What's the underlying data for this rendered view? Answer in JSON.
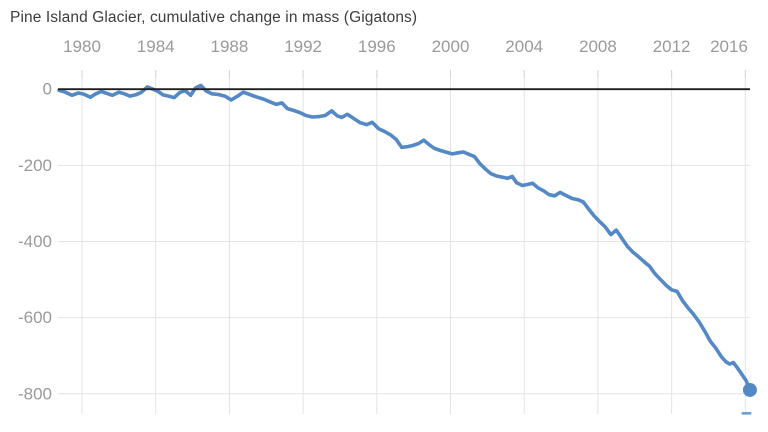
{
  "page": {
    "background": "#ffffff"
  },
  "colors": {
    "title_text": "#3d3d3d",
    "axis_text": "#9a9a9a",
    "gridline": "#e4e4e4",
    "tick": "#d6d6d6",
    "zero_line": "#1f1f1f",
    "line": "#5589c6",
    "endpoint_dash": "#6f9fd4"
  },
  "chart_data": {
    "type": "line",
    "title": "Pine Island Glacier, cumulative change in mass (Gigatons)",
    "xlabel": "",
    "ylabel": "",
    "x_axis_position": "top",
    "x_tick_labels": [
      "1980",
      "1984",
      "1988",
      "1992",
      "1996",
      "2000",
      "2004",
      "2008",
      "2012",
      "2016"
    ],
    "y_tick_labels": [
      "0",
      "-200",
      "-400",
      "-600",
      "-800"
    ],
    "xlim": [
      1978.75,
      2016.6
    ],
    "ylim": [
      -850,
      40
    ],
    "grid": true,
    "legend": "none",
    "zero_baseline": true,
    "series": [
      {
        "name": "Cumulative change in mass (Gigatons)",
        "color": "#5589c6",
        "endpoint_marker": true,
        "points": [
          [
            1978.75,
            -3
          ],
          [
            1979.1,
            -8
          ],
          [
            1979.45,
            -16
          ],
          [
            1979.8,
            -10
          ],
          [
            1980.1,
            -13
          ],
          [
            1980.45,
            -21
          ],
          [
            1980.75,
            -12
          ],
          [
            1981.05,
            -6
          ],
          [
            1981.35,
            -11
          ],
          [
            1981.65,
            -16
          ],
          [
            1982,
            -8
          ],
          [
            1982.3,
            -12
          ],
          [
            1982.6,
            -18
          ],
          [
            1982.9,
            -15
          ],
          [
            1983.2,
            -9
          ],
          [
            1983.55,
            6
          ],
          [
            1983.8,
            1
          ],
          [
            1984.1,
            -5
          ],
          [
            1984.4,
            -15
          ],
          [
            1984.7,
            -18
          ],
          [
            1985,
            -22
          ],
          [
            1985.3,
            -9
          ],
          [
            1985.6,
            -4
          ],
          [
            1985.9,
            -16
          ],
          [
            1986.15,
            3
          ],
          [
            1986.45,
            10
          ],
          [
            1986.75,
            -5
          ],
          [
            1987.05,
            -12
          ],
          [
            1987.4,
            -14
          ],
          [
            1987.75,
            -18
          ],
          [
            1988.1,
            -28
          ],
          [
            1988.45,
            -18
          ],
          [
            1988.75,
            -8
          ],
          [
            1989.1,
            -14
          ],
          [
            1989.45,
            -20
          ],
          [
            1989.85,
            -26
          ],
          [
            1990.2,
            -33
          ],
          [
            1990.55,
            -40
          ],
          [
            1990.85,
            -36
          ],
          [
            1991.15,
            -51
          ],
          [
            1991.5,
            -56
          ],
          [
            1991.85,
            -62
          ],
          [
            1992.15,
            -69
          ],
          [
            1992.5,
            -73
          ],
          [
            1992.85,
            -72
          ],
          [
            1993.2,
            -69
          ],
          [
            1993.55,
            -57
          ],
          [
            1993.85,
            -70
          ],
          [
            1994.1,
            -74
          ],
          [
            1994.4,
            -66
          ],
          [
            1994.75,
            -77
          ],
          [
            1995.1,
            -88
          ],
          [
            1995.45,
            -93
          ],
          [
            1995.75,
            -87
          ],
          [
            1996.1,
            -104
          ],
          [
            1996.45,
            -112
          ],
          [
            1996.75,
            -120
          ],
          [
            1997.05,
            -132
          ],
          [
            1997.35,
            -153
          ],
          [
            1997.65,
            -151
          ],
          [
            1997.95,
            -148
          ],
          [
            1998.25,
            -143
          ],
          [
            1998.55,
            -134
          ],
          [
            1998.85,
            -146
          ],
          [
            1999.15,
            -156
          ],
          [
            1999.45,
            -161
          ],
          [
            1999.8,
            -166
          ],
          [
            2000.1,
            -170
          ],
          [
            2000.4,
            -167
          ],
          [
            2000.7,
            -165
          ],
          [
            2001,
            -171
          ],
          [
            2001.3,
            -177
          ],
          [
            2001.6,
            -196
          ],
          [
            2001.9,
            -210
          ],
          [
            2002.2,
            -222
          ],
          [
            2002.5,
            -228
          ],
          [
            2002.8,
            -231
          ],
          [
            2003.1,
            -234
          ],
          [
            2003.35,
            -229
          ],
          [
            2003.6,
            -246
          ],
          [
            2003.9,
            -253
          ],
          [
            2004.2,
            -250
          ],
          [
            2004.45,
            -247
          ],
          [
            2004.75,
            -259
          ],
          [
            2005.05,
            -267
          ],
          [
            2005.35,
            -277
          ],
          [
            2005.65,
            -280
          ],
          [
            2005.95,
            -271
          ],
          [
            2006.3,
            -280
          ],
          [
            2006.6,
            -287
          ],
          [
            2006.9,
            -290
          ],
          [
            2007.2,
            -296
          ],
          [
            2007.5,
            -315
          ],
          [
            2007.8,
            -333
          ],
          [
            2008.1,
            -348
          ],
          [
            2008.4,
            -362
          ],
          [
            2008.7,
            -382
          ],
          [
            2009,
            -370
          ],
          [
            2009.3,
            -392
          ],
          [
            2009.6,
            -413
          ],
          [
            2009.9,
            -428
          ],
          [
            2010.2,
            -440
          ],
          [
            2010.5,
            -453
          ],
          [
            2010.8,
            -465
          ],
          [
            2011.1,
            -485
          ],
          [
            2011.4,
            -500
          ],
          [
            2011.7,
            -515
          ],
          [
            2012,
            -527
          ],
          [
            2012.3,
            -531
          ],
          [
            2012.6,
            -556
          ],
          [
            2012.9,
            -575
          ],
          [
            2013.2,
            -592
          ],
          [
            2013.5,
            -612
          ],
          [
            2013.8,
            -636
          ],
          [
            2014.1,
            -662
          ],
          [
            2014.4,
            -680
          ],
          [
            2014.7,
            -703
          ],
          [
            2014.95,
            -716
          ],
          [
            2015.15,
            -722
          ],
          [
            2015.35,
            -718
          ],
          [
            2015.6,
            -734
          ],
          [
            2015.85,
            -752
          ],
          [
            2016.05,
            -766
          ],
          [
            2016.25,
            -790
          ]
        ]
      }
    ]
  }
}
